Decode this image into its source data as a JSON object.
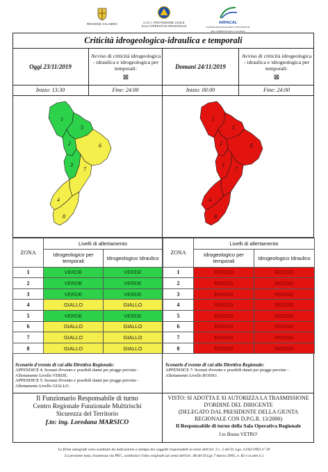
{
  "header": {
    "logo_left": "REGIONE CALABRIA",
    "logo_center_line1": "U.O.A. PROTEZIONE CIVILE",
    "logo_center_line2": "SALA OPERATIVA REGIONALE",
    "logo_right": "ARPACAL",
    "logo_right_sub": "AGENZIA REGIONALE PER LA PROTEZIONE DELL'AMBIENTE DELLA CALABRIA"
  },
  "title": "Criticità idrogeologica-idraulica e temporali",
  "today": {
    "date_label": "Oggi 23/11/2019",
    "avviso": "Avviso di criticità idrogeologica - idraulica e idrogeologica per temporali:",
    "checkbox": "⊠",
    "inizio": "Inizio: 13:30",
    "fine": "Fine: 24:00"
  },
  "tomorrow": {
    "date_label": "Domani 24/11/2019",
    "avviso": "Avviso di criticità idrogeologica - idraulica e idrogeologica per temporali:",
    "checkbox": "⊠",
    "inizio": "Inizio: 00:00",
    "fine": "Fine: 24:00"
  },
  "map_zone_labels": [
    "1",
    "2",
    "3",
    "4",
    "5",
    "6",
    "7",
    "8"
  ],
  "table": {
    "zona_header": "ZONA",
    "livelli_header": "Livelli di allertamento",
    "col_idro_temporali": "Idrogeologico per temporali",
    "col_idro_idraulico": "Idrogeologico Idraulico",
    "today_rows": [
      {
        "zona": "1",
        "a": "VERDE",
        "b": "VERDE",
        "level": "verde"
      },
      {
        "zona": "2",
        "a": "VERDE",
        "b": "VERDE",
        "level": "verde"
      },
      {
        "zona": "3",
        "a": "VERDE",
        "b": "VERDE",
        "level": "verde"
      },
      {
        "zona": "4",
        "a": "GIALLO",
        "b": "GIALLO",
        "level": "giallo"
      },
      {
        "zona": "5",
        "a": "VERDE",
        "b": "VERDE",
        "level": "verde"
      },
      {
        "zona": "6",
        "a": "GIALLO",
        "b": "GIALLO",
        "level": "giallo"
      },
      {
        "zona": "7",
        "a": "GIALLO",
        "b": "GIALLO",
        "level": "giallo"
      },
      {
        "zona": "8",
        "a": "GIALLO",
        "b": "GIALLO",
        "level": "giallo"
      }
    ],
    "tomorrow_rows": [
      {
        "zona": "1",
        "a": "ROSSO",
        "b": "ROSSO",
        "level": "rosso"
      },
      {
        "zona": "2",
        "a": "ROSSO",
        "b": "ROSSO",
        "level": "rosso"
      },
      {
        "zona": "3",
        "a": "ROSSO",
        "b": "ROSSO",
        "level": "rosso"
      },
      {
        "zona": "4",
        "a": "ROSSO",
        "b": "ROSSO",
        "level": "rosso"
      },
      {
        "zona": "5",
        "a": "ROSSO",
        "b": "ROSSO",
        "level": "rosso"
      },
      {
        "zona": "6",
        "a": "ROSSO",
        "b": "ROSSO",
        "level": "rosso"
      },
      {
        "zona": "7",
        "a": "ROSSO",
        "b": "ROSSO",
        "level": "rosso"
      },
      {
        "zona": "8",
        "a": "ROSSO",
        "b": "ROSSO",
        "level": "rosso"
      }
    ]
  },
  "scenario_today": {
    "heading": "Scenario d'evento di cui alla Direttiva Regionale:",
    "line1": "APPENDICE 4: Scenari d'evento e possibili danni per piogge previste - Allertamento Livello VERDE.",
    "line2": "APPENDICE 5: Scenari d'evento e possibili danni per piogge previste - Allertamento Livello GIALLO."
  },
  "scenario_tomorrow": {
    "heading": "Scenario d'evento di cui alla Direttiva Regionale:",
    "line1": "APPENDICE 7: Scenari d'evento e possibili danni per piogge previste - Allertamento Livello ROSSO."
  },
  "funzionario": {
    "line1": "Il Funzionario Responsabile di turno",
    "line2": "Centro Regionale Funzionale Multirischi",
    "line3": "Sicurezza del Territorio",
    "firma": "f.to: ing. Loredana MARSICO"
  },
  "visto": {
    "line1": "VISTO: SI ADOTTA E SI AUTORIZZA LA TRASMISSIONE",
    "line2": "D'ORDINE DEL DIRIGENTE",
    "line3": "(DELEGATO DAL PRESIDENTE DELLA GIUNTA",
    "line4": "REGIONALE CON D.P.G.R. 13/2006)",
    "line5": "Il Responsabile di turno della Sala Operativa Regionale",
    "firma": "f.to Bruno VETRO'"
  },
  "footer": {
    "line1": "Le firme autografe sono sostituite da indicazione a stampa dei soggetti responsabili ai sensi dell'art. 3 c. 2 del D. Lgs. 12/02/1993 n° 39",
    "line2": "La presente nota, trasmessa via PEC, sostituisce l'atto originale (ai sensi dell'art. 48 del D.Lgs 7 marzo 2005, n. 82 e ss.mm.ii.)"
  },
  "colors": {
    "verde": "#2ed14a",
    "giallo": "#f4ef4a",
    "rosso": "#e3130f"
  }
}
